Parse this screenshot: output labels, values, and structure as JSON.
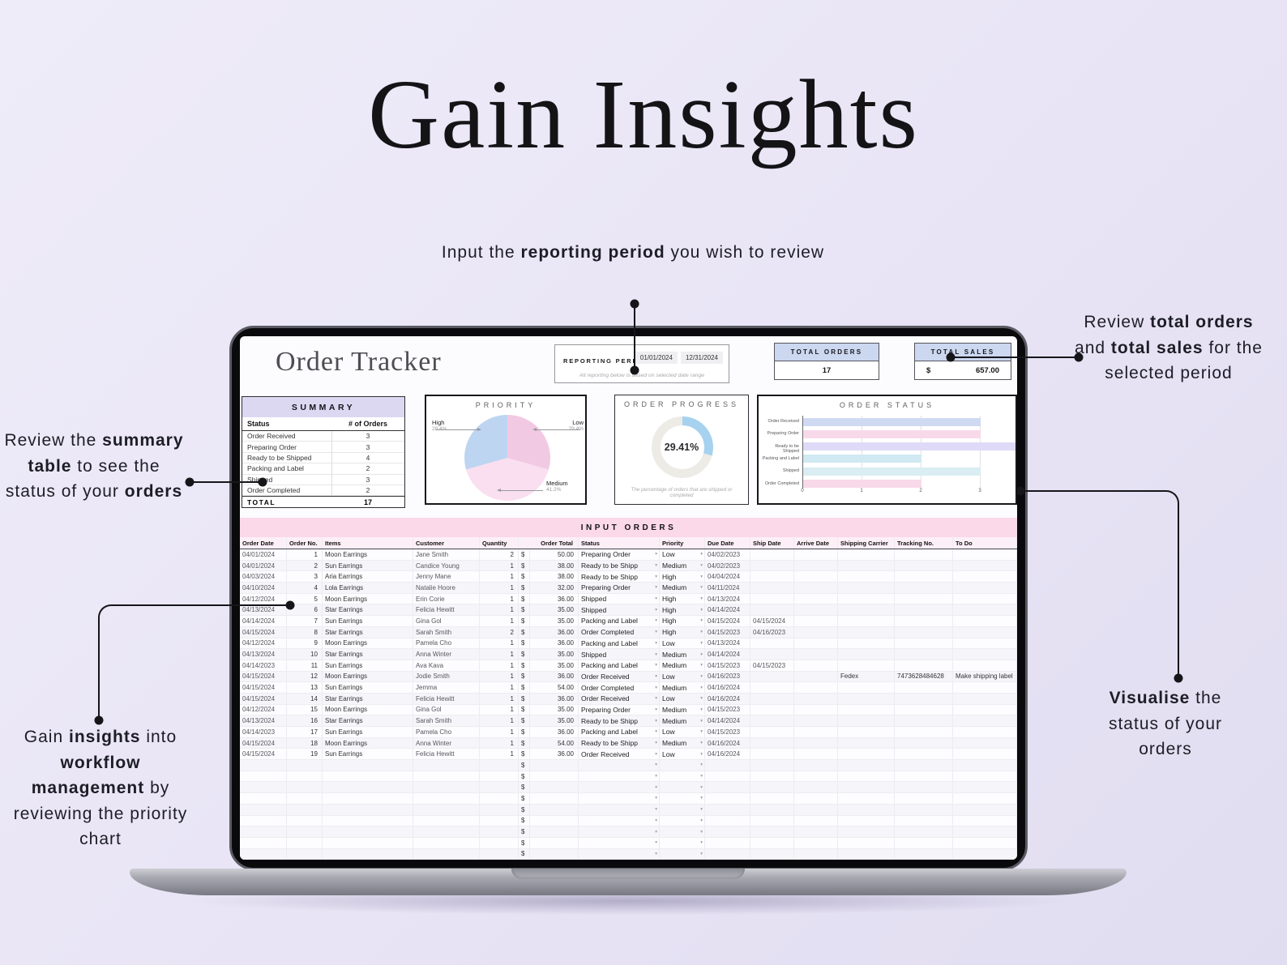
{
  "title": "Gain Insights",
  "annotations": {
    "top": [
      {
        "t": "Input the "
      },
      {
        "t": "reporting period",
        "b": true
      },
      {
        "t": " you wish to review"
      }
    ],
    "right_top": [
      {
        "t": "Review "
      },
      {
        "t": "total orders",
        "b": true
      },
      {
        "t": " and "
      },
      {
        "t": "total sales",
        "b": true
      },
      {
        "t": " for the selected period"
      }
    ],
    "left": [
      {
        "t": "Review the "
      },
      {
        "t": "summary table",
        "b": true
      },
      {
        "t": " to see the status of your "
      },
      {
        "t": "orders",
        "b": true
      }
    ],
    "bottom_left": [
      {
        "t": "Gain "
      },
      {
        "t": "insights",
        "b": true
      },
      {
        "t": " into "
      },
      {
        "t": "workflow management",
        "b": true
      },
      {
        "t": " by reviewing the priority chart"
      }
    ],
    "bottom_right": [
      {
        "t": "Visualise",
        "b": true
      },
      {
        "t": " the status of your orders"
      }
    ]
  },
  "app": {
    "title": "Order Tracker",
    "reporting_period": {
      "label": "REPORTING PERIOD",
      "start": "01/01/2024",
      "end": "12/31/2024",
      "note": "All reporting below is based on selected date range"
    },
    "total_orders": {
      "label": "TOTAL ORDERS",
      "value": "17"
    },
    "total_sales": {
      "label": "TOTAL SALES",
      "currency": "$",
      "value": "657.00"
    },
    "summary": {
      "title": "SUMMARY",
      "columns": [
        "Status",
        "# of Orders"
      ],
      "rows": [
        [
          "Order Received",
          "3"
        ],
        [
          "Preparing Order",
          "3"
        ],
        [
          "Ready to be Shipped",
          "4"
        ],
        [
          "Packing and Label",
          "2"
        ],
        [
          "Shipped",
          "3"
        ],
        [
          "Order Completed",
          "2"
        ]
      ],
      "total_label": "TOTAL",
      "total_value": "17"
    }
  },
  "chart_data": [
    {
      "type": "pie",
      "title": "PRIORITY",
      "slices": [
        {
          "label": "Low",
          "value": 29.4,
          "pct": "29.4%",
          "color": "#f2c9e2"
        },
        {
          "label": "Medium",
          "value": 41.2,
          "pct": "41.2%",
          "color": "#f9dff0"
        },
        {
          "label": "High",
          "value": 29.4,
          "pct": "29.4%",
          "color": "#bdd5f1"
        }
      ]
    },
    {
      "type": "donut",
      "title": "ORDER PROGRESS",
      "value": 29.41,
      "label": "29.41%",
      "caption": "The percentage of orders that are shipped or completed",
      "color": "#a6d2ef",
      "track": "#edebe6"
    },
    {
      "type": "bar",
      "title": "ORDER STATUS",
      "orientation": "horizontal",
      "categories": [
        "Order Received",
        "Preparing Order",
        "Ready to be Shipped",
        "Packing and Label",
        "Shipped",
        "Order Completed"
      ],
      "values": [
        3,
        3,
        4,
        2,
        3,
        2
      ],
      "colors": [
        "#cfdaf2",
        "#f8d9ea",
        "#dedaf7",
        "#d0e9f2",
        "#d9edf2",
        "#f8d9ea"
      ],
      "xlim": [
        0,
        4
      ],
      "xticks": [
        0,
        1,
        2,
        3,
        4
      ],
      "grid": true,
      "legend": "none"
    }
  ],
  "input_orders": {
    "title": "INPUT ORDERS",
    "currency": "$",
    "columns": [
      "Order Date",
      "Order No.",
      "Items",
      "Customer",
      "Quantity",
      "Order Total",
      "Status",
      "Priority",
      "Due Date",
      "Ship Date",
      "Arrive Date",
      "Shipping Carrier",
      "Tracking No.",
      "To Do"
    ],
    "rows": [
      [
        "04/01/2024",
        "1",
        "Moon Earrings",
        "Jane Smith",
        "2",
        "50.00",
        "Preparing Order",
        "Low",
        "04/02/2023",
        "",
        "",
        "",
        "",
        ""
      ],
      [
        "04/01/2024",
        "2",
        "Sun Earrings",
        "Candice Young",
        "1",
        "38.00",
        "Ready to be Shipp",
        "Medium",
        "04/02/2023",
        "",
        "",
        "",
        "",
        ""
      ],
      [
        "04/03/2024",
        "3",
        "Aria Earrings",
        "Jenny Mane",
        "1",
        "38.00",
        "Ready to be Shipp",
        "High",
        "04/04/2024",
        "",
        "",
        "",
        "",
        ""
      ],
      [
        "04/10/2024",
        "4",
        "Lola Earrings",
        "Natalie Hoore",
        "1",
        "32.00",
        "Preparing Order",
        "Medium",
        "04/11/2024",
        "",
        "",
        "",
        "",
        ""
      ],
      [
        "04/12/2024",
        "5",
        "Moon Earrings",
        "Erin Corie",
        "1",
        "36.00",
        "Shipped",
        "High",
        "04/13/2024",
        "",
        "",
        "",
        "",
        ""
      ],
      [
        "04/13/2024",
        "6",
        "Star Earrings",
        "Felicia Hewitt",
        "1",
        "35.00",
        "Shipped",
        "High",
        "04/14/2024",
        "",
        "",
        "",
        "",
        ""
      ],
      [
        "04/14/2024",
        "7",
        "Sun Earrings",
        "Gina Gol",
        "1",
        "35.00",
        "Packing and Label",
        "High",
        "04/15/2024",
        "04/15/2024",
        "",
        "",
        "",
        ""
      ],
      [
        "04/15/2024",
        "8",
        "Star Earrings",
        "Sarah Smith",
        "2",
        "36.00",
        "Order Completed",
        "High",
        "04/15/2023",
        "04/16/2023",
        "",
        "",
        "",
        ""
      ],
      [
        "04/12/2024",
        "9",
        "Moon Earrings",
        "Pamela Cho",
        "1",
        "36.00",
        "Packing and Label",
        "Low",
        "04/13/2024",
        "",
        "",
        "",
        "",
        ""
      ],
      [
        "04/13/2024",
        "10",
        "Star Earrings",
        "Anna Winter",
        "1",
        "35.00",
        "Shipped",
        "Medium",
        "04/14/2024",
        "",
        "",
        "",
        "",
        ""
      ],
      [
        "04/14/2023",
        "11",
        "Sun Earrings",
        "Ava Kava",
        "1",
        "35.00",
        "Packing and Label",
        "Medium",
        "04/15/2023",
        "04/15/2023",
        "",
        "",
        "",
        ""
      ],
      [
        "04/15/2024",
        "12",
        "Moon Earrings",
        "Jodie Smith",
        "1",
        "36.00",
        "Order Received",
        "Low",
        "04/16/2023",
        "",
        "",
        "Fedex",
        "7473628484628",
        "Make shipping label"
      ],
      [
        "04/15/2024",
        "13",
        "Sun Earrings",
        "Jemma",
        "1",
        "54.00",
        "Order Completed",
        "Medium",
        "04/16/2024",
        "",
        "",
        "",
        "",
        ""
      ],
      [
        "04/15/2024",
        "14",
        "Star Earrings",
        "Felicia Hewitt",
        "1",
        "36.00",
        "Order Received",
        "Low",
        "04/16/2024",
        "",
        "",
        "",
        "",
        ""
      ],
      [
        "04/12/2024",
        "15",
        "Moon Earrings",
        "Gina Gol",
        "1",
        "35.00",
        "Preparing Order",
        "Medium",
        "04/15/2023",
        "",
        "",
        "",
        "",
        ""
      ],
      [
        "04/13/2024",
        "16",
        "Star Earrings",
        "Sarah Smith",
        "1",
        "35.00",
        "Ready to be Shipp",
        "Medium",
        "04/14/2024",
        "",
        "",
        "",
        "",
        ""
      ],
      [
        "04/14/2023",
        "17",
        "Sun Earrings",
        "Pamela Cho",
        "1",
        "36.00",
        "Packing and Label",
        "Low",
        "04/15/2023",
        "",
        "",
        "",
        "",
        ""
      ],
      [
        "04/15/2024",
        "18",
        "Moon Earrings",
        "Anna Winter",
        "1",
        "54.00",
        "Ready to be Shipp",
        "Medium",
        "04/16/2024",
        "",
        "",
        "",
        "",
        ""
      ],
      [
        "04/15/2024",
        "19",
        "Sun Earrings",
        "Felicia Hewitt",
        "1",
        "36.00",
        "Order Received",
        "Low",
        "04/16/2024",
        "",
        "",
        "",
        "",
        ""
      ]
    ],
    "empty_rows": 9
  }
}
